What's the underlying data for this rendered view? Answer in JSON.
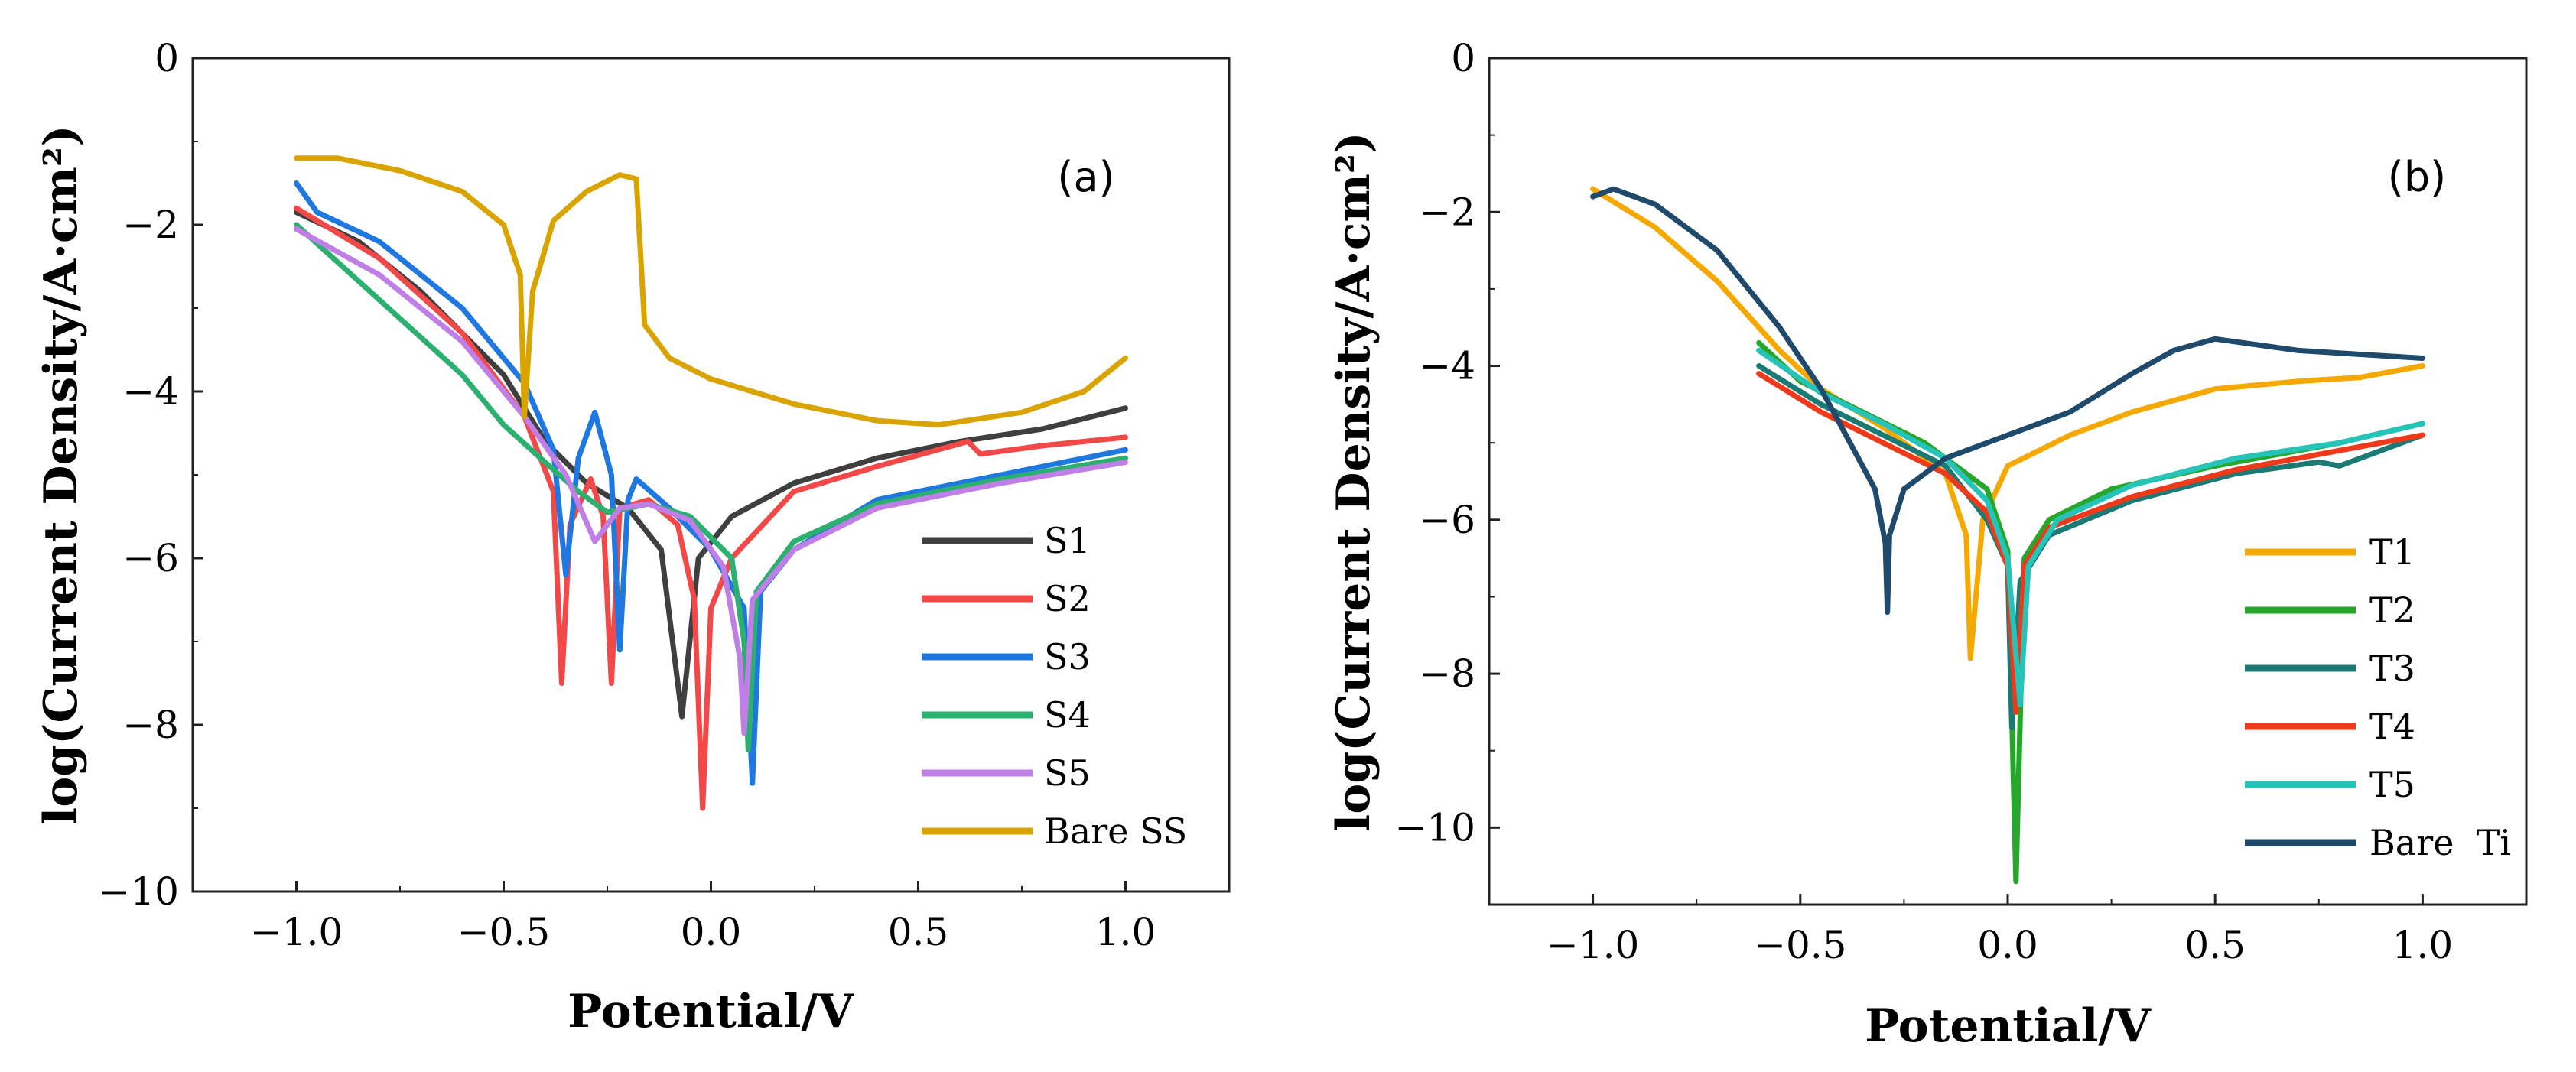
{
  "chart_data": [
    {
      "type": "line",
      "panel_label": "(a)",
      "xlabel": "Potential/V",
      "ylabel": "log(Current Density/A·cm²)",
      "xlim": [
        -1.25,
        1.25
      ],
      "ylim": [
        -10,
        0
      ],
      "xticks": [
        -1.0,
        -0.5,
        0.0,
        0.5,
        1.0
      ],
      "xtick_labels": [
        "−1.0",
        "−0.5",
        "0.0",
        "0.5",
        "1.0"
      ],
      "yticks": [
        0,
        -2,
        -4,
        -6,
        -8,
        -10
      ],
      "ytick_labels": [
        "0",
        "−2",
        "−4",
        "−6",
        "−8",
        "−10"
      ],
      "legend_position": "bottom-right",
      "series": [
        {
          "name": "S1",
          "color": "#3f3f3f",
          "points": [
            [
              -1.0,
              -1.85
            ],
            [
              -0.85,
              -2.2
            ],
            [
              -0.7,
              -2.8
            ],
            [
              -0.5,
              -3.8
            ],
            [
              -0.4,
              -4.6
            ],
            [
              -0.3,
              -5.1
            ],
            [
              -0.2,
              -5.4
            ],
            [
              -0.12,
              -5.9
            ],
            [
              -0.07,
              -7.9
            ],
            [
              -0.03,
              -6.0
            ],
            [
              0.05,
              -5.5
            ],
            [
              0.2,
              -5.1
            ],
            [
              0.4,
              -4.8
            ],
            [
              0.6,
              -4.6
            ],
            [
              0.8,
              -4.45
            ],
            [
              1.0,
              -4.2
            ]
          ]
        },
        {
          "name": "S2",
          "color": "#f24848",
          "points": [
            [
              -1.0,
              -1.8
            ],
            [
              -0.8,
              -2.4
            ],
            [
              -0.6,
              -3.3
            ],
            [
              -0.45,
              -4.3
            ],
            [
              -0.38,
              -5.2
            ],
            [
              -0.36,
              -7.5
            ],
            [
              -0.34,
              -5.6
            ],
            [
              -0.29,
              -5.05
            ],
            [
              -0.26,
              -5.5
            ],
            [
              -0.24,
              -7.5
            ],
            [
              -0.22,
              -5.4
            ],
            [
              -0.15,
              -5.3
            ],
            [
              -0.08,
              -5.6
            ],
            [
              -0.04,
              -6.5
            ],
            [
              -0.02,
              -9.0
            ],
            [
              0.0,
              -6.6
            ],
            [
              0.05,
              -6.0
            ],
            [
              0.2,
              -5.2
            ],
            [
              0.4,
              -4.9
            ],
            [
              0.62,
              -4.6
            ],
            [
              0.65,
              -4.75
            ],
            [
              0.8,
              -4.65
            ],
            [
              1.0,
              -4.55
            ]
          ]
        },
        {
          "name": "S3",
          "color": "#1f77e0",
          "points": [
            [
              -1.0,
              -1.5
            ],
            [
              -0.95,
              -1.85
            ],
            [
              -0.8,
              -2.2
            ],
            [
              -0.6,
              -3.0
            ],
            [
              -0.45,
              -3.9
            ],
            [
              -0.38,
              -4.7
            ],
            [
              -0.35,
              -6.2
            ],
            [
              -0.32,
              -4.8
            ],
            [
              -0.28,
              -4.25
            ],
            [
              -0.24,
              -5.0
            ],
            [
              -0.22,
              -7.1
            ],
            [
              -0.2,
              -5.3
            ],
            [
              -0.18,
              -5.05
            ],
            [
              -0.1,
              -5.4
            ],
            [
              0.0,
              -5.9
            ],
            [
              0.08,
              -6.6
            ],
            [
              0.1,
              -8.7
            ],
            [
              0.12,
              -6.4
            ],
            [
              0.2,
              -5.9
            ],
            [
              0.4,
              -5.3
            ],
            [
              0.7,
              -5.0
            ],
            [
              1.0,
              -4.7
            ]
          ]
        },
        {
          "name": "S4",
          "color": "#2bb070",
          "points": [
            [
              -1.0,
              -2.0
            ],
            [
              -0.8,
              -2.9
            ],
            [
              -0.6,
              -3.8
            ],
            [
              -0.5,
              -4.4
            ],
            [
              -0.4,
              -4.85
            ],
            [
              -0.32,
              -5.2
            ],
            [
              -0.25,
              -5.45
            ],
            [
              -0.15,
              -5.35
            ],
            [
              -0.05,
              -5.5
            ],
            [
              0.05,
              -6.0
            ],
            [
              0.08,
              -7.0
            ],
            [
              0.09,
              -8.3
            ],
            [
              0.11,
              -6.4
            ],
            [
              0.2,
              -5.8
            ],
            [
              0.4,
              -5.35
            ],
            [
              0.7,
              -5.05
            ],
            [
              1.0,
              -4.8
            ]
          ]
        },
        {
          "name": "S5",
          "color": "#bf7fe6",
          "points": [
            [
              -1.0,
              -2.05
            ],
            [
              -0.8,
              -2.6
            ],
            [
              -0.6,
              -3.4
            ],
            [
              -0.45,
              -4.3
            ],
            [
              -0.35,
              -5.0
            ],
            [
              -0.28,
              -5.8
            ],
            [
              -0.22,
              -5.4
            ],
            [
              -0.15,
              -5.35
            ],
            [
              -0.05,
              -5.55
            ],
            [
              0.03,
              -6.1
            ],
            [
              0.07,
              -7.2
            ],
            [
              0.08,
              -8.1
            ],
            [
              0.1,
              -6.5
            ],
            [
              0.2,
              -5.9
            ],
            [
              0.4,
              -5.4
            ],
            [
              0.7,
              -5.1
            ],
            [
              1.0,
              -4.85
            ]
          ]
        },
        {
          "name": "Bare SS",
          "color": "#d9a400",
          "points": [
            [
              -1.0,
              -1.2
            ],
            [
              -0.9,
              -1.2
            ],
            [
              -0.75,
              -1.35
            ],
            [
              -0.6,
              -1.6
            ],
            [
              -0.5,
              -2.0
            ],
            [
              -0.46,
              -2.6
            ],
            [
              -0.45,
              -4.3
            ],
            [
              -0.43,
              -2.8
            ],
            [
              -0.38,
              -1.95
            ],
            [
              -0.3,
              -1.6
            ],
            [
              -0.22,
              -1.4
            ],
            [
              -0.18,
              -1.45
            ],
            [
              -0.16,
              -3.2
            ],
            [
              -0.1,
              -3.6
            ],
            [
              0.0,
              -3.85
            ],
            [
              0.2,
              -4.15
            ],
            [
              0.4,
              -4.35
            ],
            [
              0.55,
              -4.4
            ],
            [
              0.75,
              -4.25
            ],
            [
              0.9,
              -4.0
            ],
            [
              1.0,
              -3.6
            ]
          ]
        }
      ]
    },
    {
      "type": "line",
      "panel_label": "(b)",
      "xlabel": "Potential/V",
      "ylabel": "log(Current Density/A·cm²)",
      "xlim": [
        -1.25,
        1.25
      ],
      "ylim": [
        -11,
        0
      ],
      "xticks": [
        -1.0,
        -0.5,
        0.0,
        0.5,
        1.0
      ],
      "xtick_labels": [
        "−1.0",
        "−0.5",
        "0.0",
        "0.5",
        "1.0"
      ],
      "yticks": [
        0,
        -2,
        -4,
        -6,
        -8,
        -10
      ],
      "ytick_labels": [
        "0",
        "−2",
        "−4",
        "−6",
        "−8",
        "−10"
      ],
      "legend_position": "bottom-right",
      "series": [
        {
          "name": "T1",
          "color": "#f5a800",
          "points": [
            [
              -1.0,
              -1.7
            ],
            [
              -0.85,
              -2.2
            ],
            [
              -0.7,
              -2.9
            ],
            [
              -0.55,
              -3.8
            ],
            [
              -0.45,
              -4.3
            ],
            [
              -0.3,
              -4.8
            ],
            [
              -0.15,
              -5.4
            ],
            [
              -0.1,
              -6.2
            ],
            [
              -0.09,
              -7.8
            ],
            [
              -0.06,
              -6.0
            ],
            [
              0.0,
              -5.3
            ],
            [
              0.15,
              -4.9
            ],
            [
              0.3,
              -4.6
            ],
            [
              0.5,
              -4.3
            ],
            [
              0.7,
              -4.2
            ],
            [
              0.85,
              -4.15
            ],
            [
              1.0,
              -4.0
            ]
          ]
        },
        {
          "name": "T2",
          "color": "#27a62c",
          "points": [
            [
              -0.6,
              -3.7
            ],
            [
              -0.5,
              -4.2
            ],
            [
              -0.35,
              -4.6
            ],
            [
              -0.2,
              -5.0
            ],
            [
              -0.05,
              -5.6
            ],
            [
              0.0,
              -6.4
            ],
            [
              0.02,
              -10.7
            ],
            [
              0.04,
              -6.5
            ],
            [
              0.1,
              -6.0
            ],
            [
              0.25,
              -5.6
            ],
            [
              0.5,
              -5.3
            ],
            [
              0.8,
              -5.0
            ],
            [
              1.0,
              -4.75
            ]
          ]
        },
        {
          "name": "T3",
          "color": "#1c7a74",
          "points": [
            [
              -0.6,
              -4.0
            ],
            [
              -0.45,
              -4.5
            ],
            [
              -0.3,
              -4.9
            ],
            [
              -0.15,
              -5.3
            ],
            [
              -0.05,
              -6.0
            ],
            [
              0.0,
              -6.6
            ],
            [
              0.01,
              -8.7
            ],
            [
              0.03,
              -6.8
            ],
            [
              0.1,
              -6.2
            ],
            [
              0.3,
              -5.75
            ],
            [
              0.55,
              -5.4
            ],
            [
              0.75,
              -5.25
            ],
            [
              0.8,
              -5.3
            ],
            [
              1.0,
              -4.9
            ]
          ]
        },
        {
          "name": "T4",
          "color": "#ee3a1b",
          "points": [
            [
              -0.6,
              -4.1
            ],
            [
              -0.45,
              -4.6
            ],
            [
              -0.3,
              -5.0
            ],
            [
              -0.15,
              -5.4
            ],
            [
              -0.05,
              -5.9
            ],
            [
              0.0,
              -6.6
            ],
            [
              0.02,
              -8.5
            ],
            [
              0.04,
              -6.6
            ],
            [
              0.1,
              -6.1
            ],
            [
              0.3,
              -5.7
            ],
            [
              0.55,
              -5.35
            ],
            [
              0.8,
              -5.1
            ],
            [
              1.0,
              -4.9
            ]
          ]
        },
        {
          "name": "T5",
          "color": "#26c4b8",
          "points": [
            [
              -0.6,
              -3.8
            ],
            [
              -0.45,
              -4.35
            ],
            [
              -0.3,
              -4.75
            ],
            [
              -0.15,
              -5.2
            ],
            [
              -0.05,
              -5.75
            ],
            [
              0.0,
              -6.5
            ],
            [
              0.03,
              -8.4
            ],
            [
              0.05,
              -6.6
            ],
            [
              0.12,
              -6.0
            ],
            [
              0.3,
              -5.55
            ],
            [
              0.55,
              -5.2
            ],
            [
              0.8,
              -5.0
            ],
            [
              1.0,
              -4.75
            ]
          ]
        },
        {
          "name": "Bare  Ti",
          "color": "#1f4a6b",
          "points": [
            [
              -1.0,
              -1.8
            ],
            [
              -0.95,
              -1.7
            ],
            [
              -0.85,
              -1.9
            ],
            [
              -0.7,
              -2.5
            ],
            [
              -0.55,
              -3.5
            ],
            [
              -0.45,
              -4.3
            ],
            [
              -0.38,
              -5.0
            ],
            [
              -0.32,
              -5.6
            ],
            [
              -0.295,
              -6.3
            ],
            [
              -0.29,
              -7.2
            ],
            [
              -0.285,
              -6.2
            ],
            [
              -0.25,
              -5.6
            ],
            [
              -0.15,
              -5.2
            ],
            [
              0.0,
              -4.9
            ],
            [
              0.15,
              -4.6
            ],
            [
              0.3,
              -4.1
            ],
            [
              0.4,
              -3.8
            ],
            [
              0.5,
              -3.65
            ],
            [
              0.7,
              -3.8
            ],
            [
              1.0,
              -3.9
            ]
          ]
        }
      ]
    }
  ]
}
